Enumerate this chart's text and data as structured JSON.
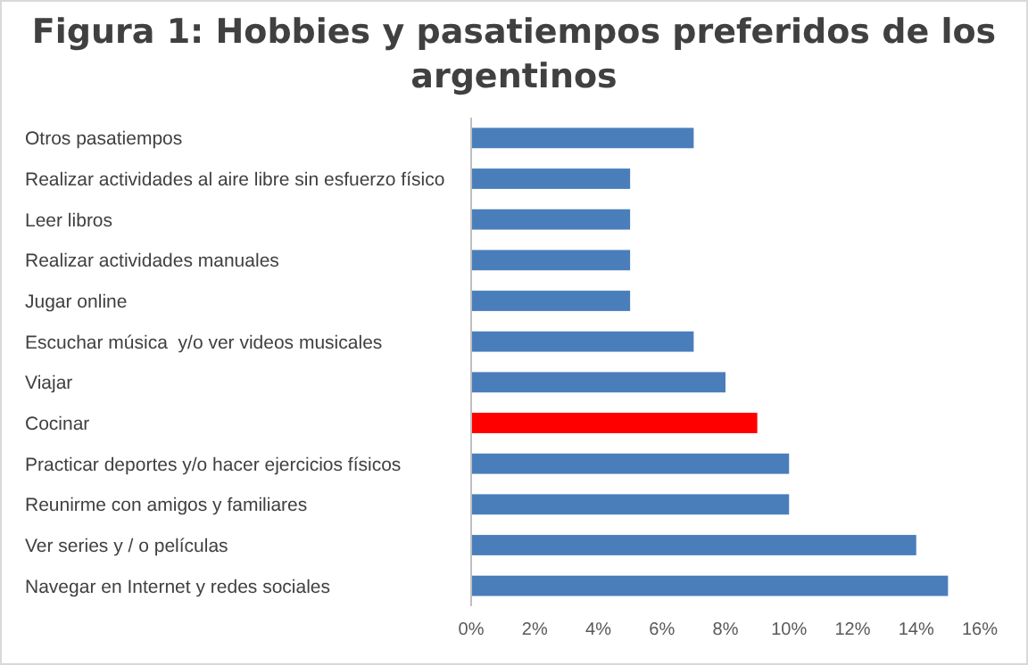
{
  "chart_data": {
    "type": "bar",
    "orientation": "horizontal",
    "title": "Figura 1: Hobbies y pasatiempos preferidos de los argentinos",
    "categories": [
      "Otros pasatiempos",
      "Realizar actividades al aire libre sin esfuerzo físico",
      "Leer libros",
      "Realizar actividades manuales",
      "Jugar online",
      "Escuchar música  y/o ver videos musicales",
      "Viajar",
      "Cocinar",
      "Practicar deportes y/o hacer ejercicios físicos",
      "Reunirme con amigos y familiares",
      "Ver series y / o películas",
      "Navegar en Internet y redes sociales"
    ],
    "values": [
      7,
      5,
      5,
      5,
      5,
      7,
      8,
      9,
      10,
      10,
      14,
      15
    ],
    "colors": [
      "#4a7ebb",
      "#4a7ebb",
      "#4a7ebb",
      "#4a7ebb",
      "#4a7ebb",
      "#4a7ebb",
      "#4a7ebb",
      "#ff0000",
      "#4a7ebb",
      "#4a7ebb",
      "#4a7ebb",
      "#4a7ebb"
    ],
    "xlim": [
      0,
      16
    ],
    "xticks": [
      {
        "value": 0,
        "label": "0%"
      },
      {
        "value": 2,
        "label": "2%"
      },
      {
        "value": 4,
        "label": "4%"
      },
      {
        "value": 6,
        "label": "6%"
      },
      {
        "value": 8,
        "label": "8%"
      },
      {
        "value": 10,
        "label": "10%"
      },
      {
        "value": 12,
        "label": "12%"
      },
      {
        "value": 14,
        "label": "14%"
      },
      {
        "value": 16,
        "label": "16%"
      }
    ],
    "grid": false
  }
}
